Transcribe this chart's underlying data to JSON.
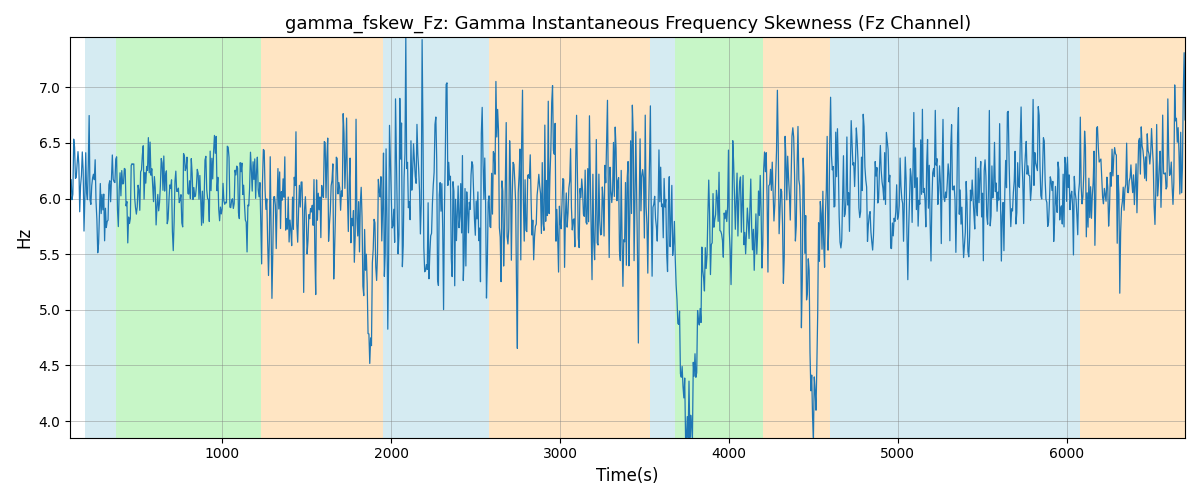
{
  "title": "gamma_fskew_Fz: Gamma Instantaneous Frequency Skewness (Fz Channel)",
  "xlabel": "Time(s)",
  "ylabel": "Hz",
  "xlim": [
    100,
    6700
  ],
  "ylim": [
    3.85,
    7.45
  ],
  "yticks": [
    4.0,
    4.5,
    5.0,
    5.5,
    6.0,
    6.5,
    7.0
  ],
  "bg_regions": [
    {
      "xmin": 190,
      "xmax": 370,
      "color": "#add8e6",
      "alpha": 0.5
    },
    {
      "xmin": 370,
      "xmax": 1230,
      "color": "#90ee90",
      "alpha": 0.5
    },
    {
      "xmin": 1230,
      "xmax": 1950,
      "color": "#ffd59b",
      "alpha": 0.6
    },
    {
      "xmin": 1950,
      "xmax": 2580,
      "color": "#add8e6",
      "alpha": 0.5
    },
    {
      "xmin": 2580,
      "xmax": 3530,
      "color": "#ffd59b",
      "alpha": 0.6
    },
    {
      "xmin": 3530,
      "xmax": 3680,
      "color": "#add8e6",
      "alpha": 0.5
    },
    {
      "xmin": 3680,
      "xmax": 4200,
      "color": "#90ee90",
      "alpha": 0.5
    },
    {
      "xmin": 4200,
      "xmax": 4600,
      "color": "#ffd59b",
      "alpha": 0.6
    },
    {
      "xmin": 4600,
      "xmax": 5780,
      "color": "#add8e6",
      "alpha": 0.5
    },
    {
      "xmin": 5780,
      "xmax": 6080,
      "color": "#add8e6",
      "alpha": 0.5
    },
    {
      "xmin": 6080,
      "xmax": 6700,
      "color": "#ffd59b",
      "alpha": 0.6
    }
  ],
  "line_color": "#1f77b4",
  "line_width": 0.9
}
